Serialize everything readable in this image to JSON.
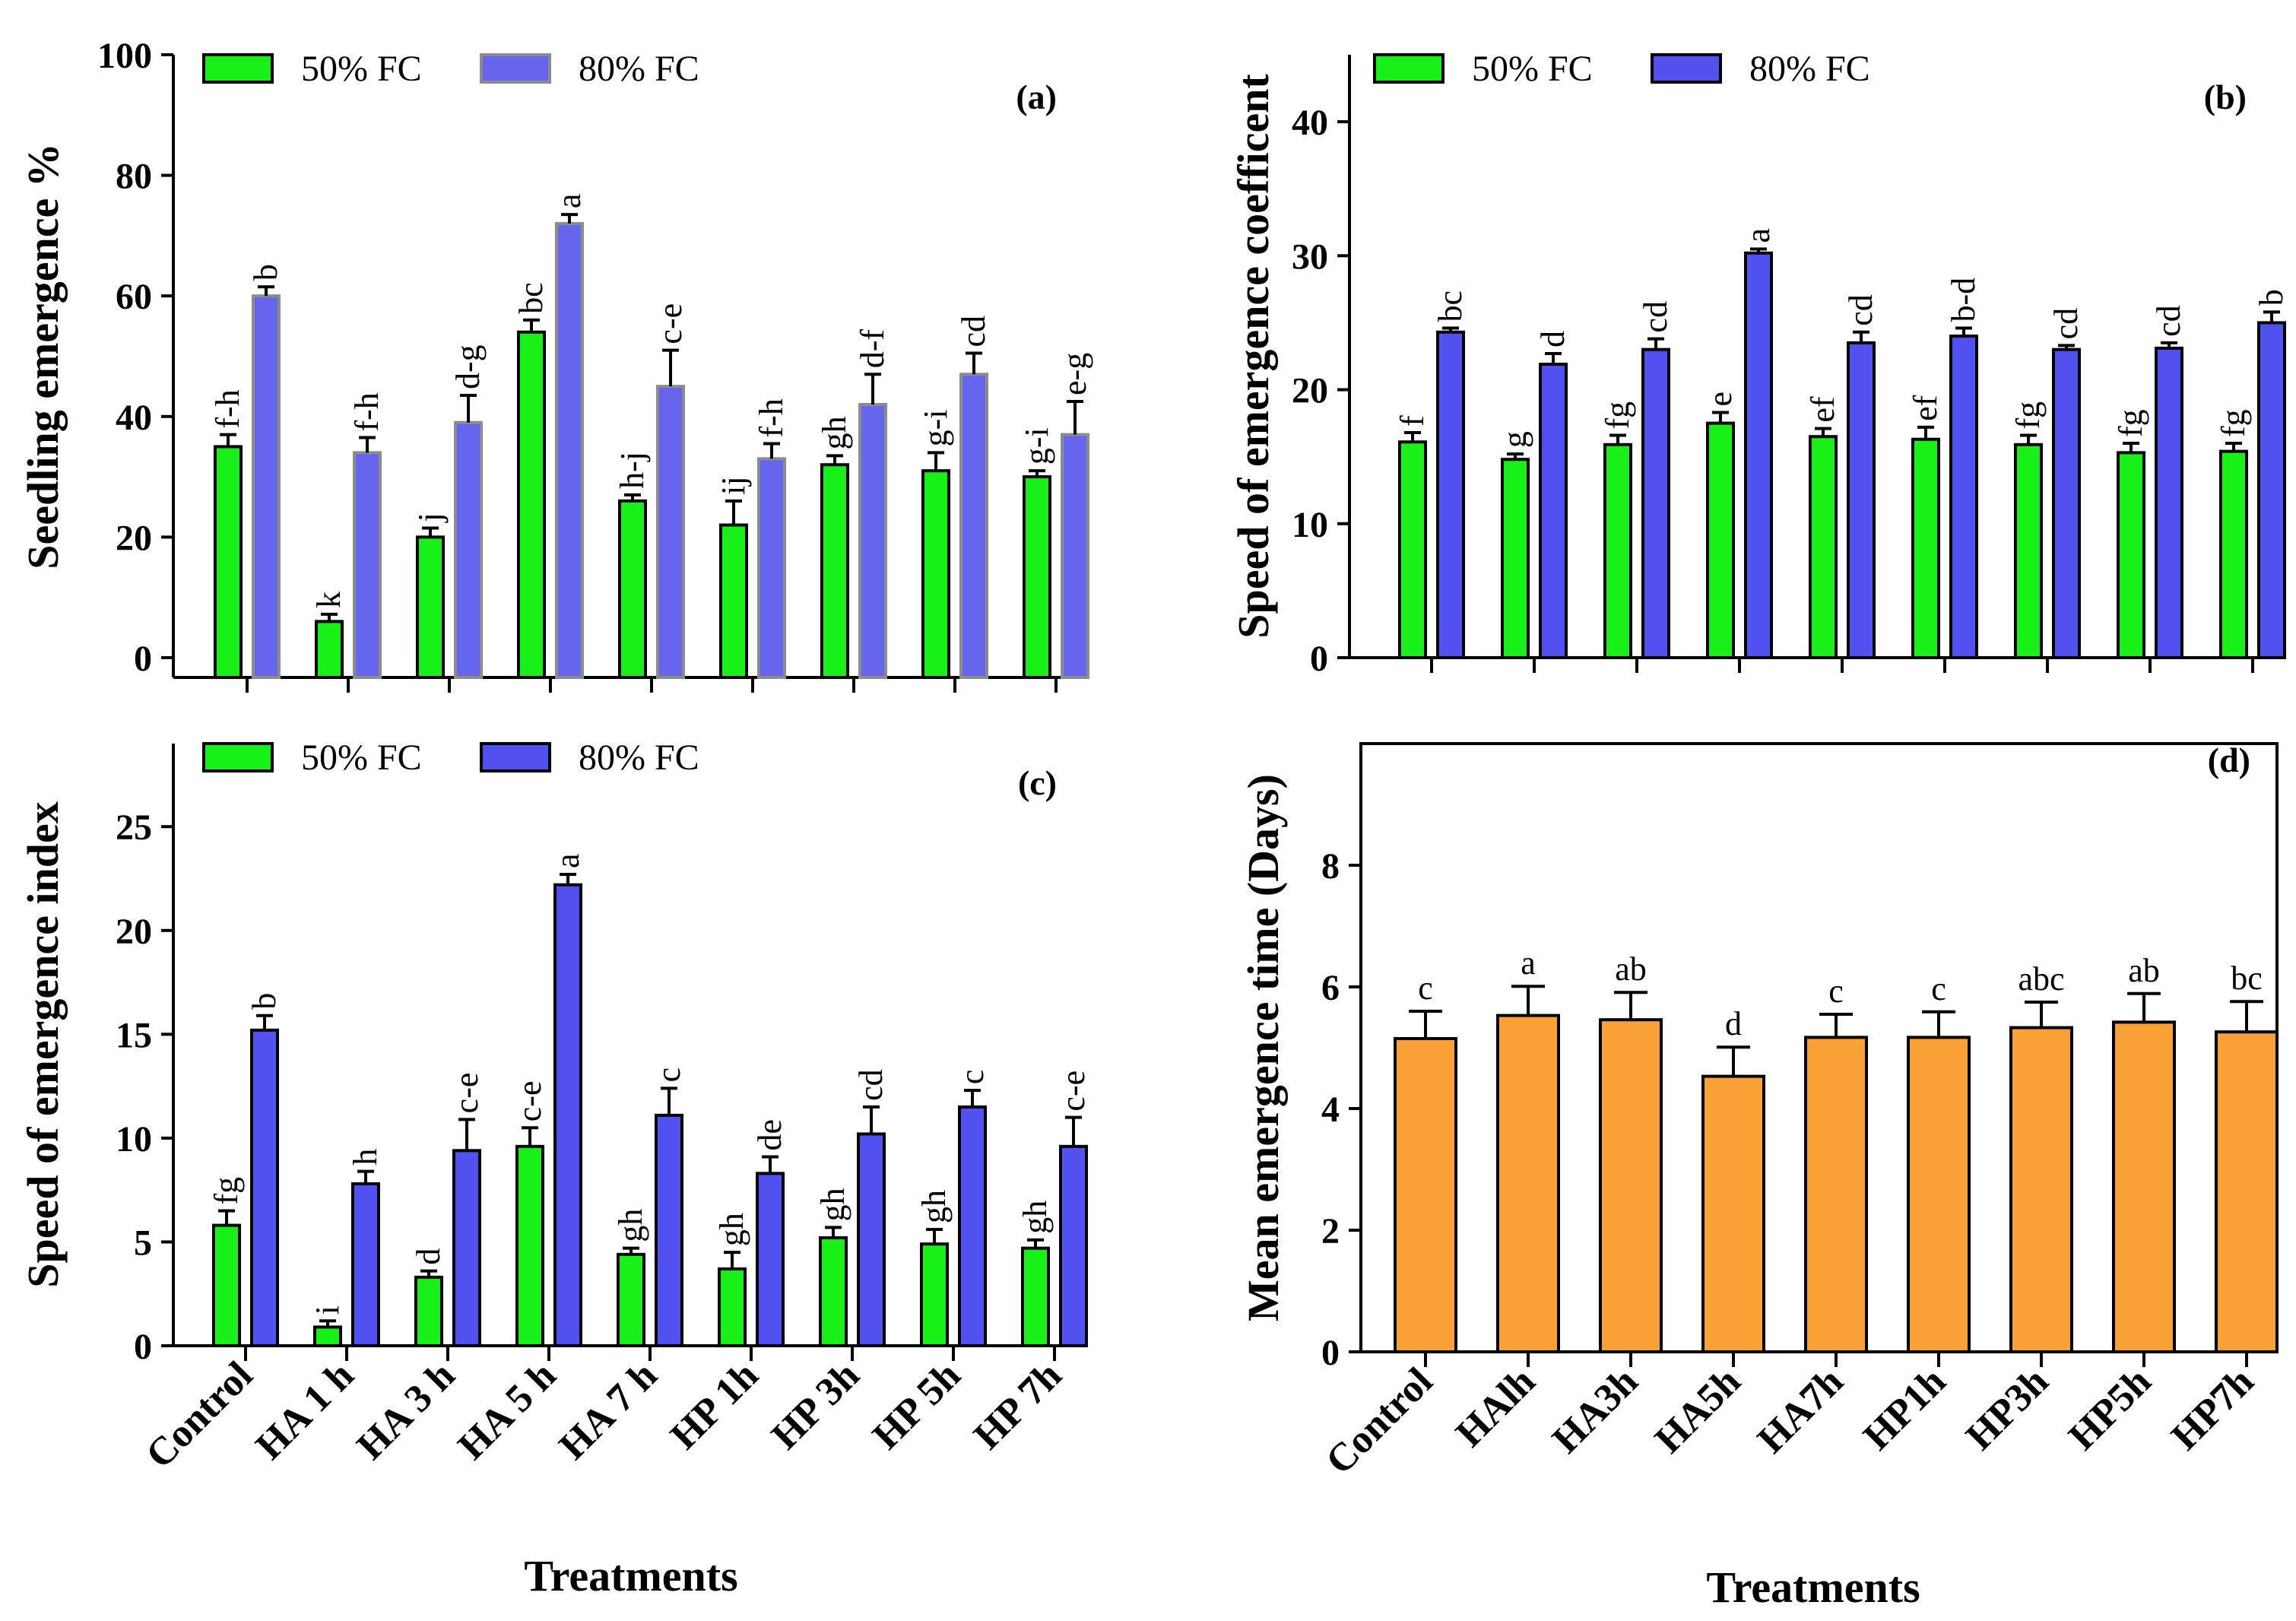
{
  "colors": {
    "green": "#19ef19",
    "blue": "#5151f0",
    "blue_light": "#6565ee",
    "orange": "#f9a036",
    "grey_edge": "#8c8c8c"
  },
  "categories": [
    "Control",
    "HA 1 h",
    "HA 3 h",
    "HA 5 h",
    "HA 7 h",
    "HP 1h",
    "HP 3h",
    "HP 5h",
    "HP 7h"
  ],
  "x_title": "Treatments",
  "chart_data": [
    {
      "id": "a",
      "type": "bar",
      "tag": "(a)",
      "title": "",
      "ylabel": "Seedling emergence %",
      "ylim": [
        0,
        100
      ],
      "yticks": [
        "0",
        "20",
        "40",
        "60",
        "80",
        "100"
      ],
      "legend": [
        "50% FC",
        "80% FC"
      ],
      "categories": [
        "Control",
        "HA 1 h",
        "HA 3 h",
        "HA 5 h",
        "HA 7 h",
        "HP 1h",
        "HP 3h",
        "HP 5h",
        "HP 7h"
      ],
      "series": [
        {
          "name": "50% FC",
          "values": [
            35,
            6,
            20,
            54,
            26,
            22,
            32,
            31,
            30
          ],
          "errors": [
            2,
            1.2,
            1.5,
            2,
            1,
            4,
            1.5,
            3,
            1
          ],
          "letters": [
            "f-h",
            "k",
            "j",
            "bc",
            "h-j",
            "ij",
            "gh",
            "g-i",
            "g-i"
          ]
        },
        {
          "name": "80% FC",
          "values": [
            60,
            34,
            39,
            72,
            45,
            33,
            42,
            47,
            37
          ],
          "errors": [
            1.5,
            2.5,
            4.5,
            1.5,
            6,
            2.5,
            5,
            3.5,
            5.5
          ],
          "letters": [
            "b",
            "f-h",
            "d-g",
            "a",
            "c-e",
            "f-h",
            "d-f",
            "cd",
            "e-g"
          ]
        }
      ]
    },
    {
      "id": "b",
      "type": "bar",
      "tag": "(b)",
      "title": "",
      "ylabel": "Speed of emergence coefficent",
      "ylim": [
        0,
        45
      ],
      "yticks": [
        "0",
        "10",
        "20",
        "30",
        "40"
      ],
      "legend": [
        "50% FC",
        "80% FC"
      ],
      "categories": [
        "Control",
        "HA 1 h",
        "HA 3 h",
        "HA 5 h",
        "HA 7 h",
        "HP 1h",
        "HP 3h",
        "HP 5h",
        "HP 7h"
      ],
      "series": [
        {
          "name": "50% FC",
          "values": [
            16.1,
            14.8,
            15.9,
            17.5,
            16.5,
            16.3,
            15.9,
            15.3,
            15.4
          ],
          "errors": [
            0.7,
            0.4,
            0.7,
            0.8,
            0.6,
            0.9,
            0.7,
            0.7,
            0.6
          ],
          "letters": [
            "f",
            "g",
            "fg",
            "e",
            "ef",
            "ef",
            "fg",
            "fg",
            "fg"
          ]
        },
        {
          "name": "80% FC",
          "values": [
            24.3,
            21.9,
            23.0,
            30.2,
            23.5,
            24.0,
            23.0,
            23.1,
            25.0
          ],
          "errors": [
            0.3,
            0.8,
            0.8,
            0.3,
            0.8,
            0.6,
            0.3,
            0.4,
            0.8
          ],
          "letters": [
            "bc",
            "d",
            "cd",
            "a",
            "cd",
            "b-d",
            "cd",
            "cd",
            "b"
          ]
        }
      ]
    },
    {
      "id": "c",
      "type": "bar",
      "tag": "(c)",
      "title": "",
      "ylabel": "Speed of emergence index",
      "ylim": [
        0,
        29
      ],
      "yticks": [
        "0",
        "5",
        "10",
        "15",
        "20",
        "25"
      ],
      "legend": [
        "50% FC",
        "80% FC"
      ],
      "categories": [
        "Control",
        "HA 1 h",
        "HA 3 h",
        "HA 5 h",
        "HA 7 h",
        "HP 1h",
        "HP 3h",
        "HP 5h",
        "HP 7h"
      ],
      "xlabel": "Treatments",
      "series": [
        {
          "name": "50% FC",
          "values": [
            5.8,
            0.9,
            3.3,
            9.6,
            4.4,
            3.7,
            5.2,
            4.9,
            4.7
          ],
          "errors": [
            0.7,
            0.3,
            0.3,
            0.9,
            0.3,
            0.8,
            0.5,
            0.7,
            0.4
          ],
          "letters": [
            "fg",
            "i",
            "d",
            "c-e",
            "gh",
            "gh",
            "gh",
            "gh",
            "gh"
          ]
        },
        {
          "name": "80% FC",
          "values": [
            15.2,
            7.8,
            9.4,
            22.2,
            11.1,
            8.3,
            10.2,
            11.5,
            9.6
          ],
          "errors": [
            0.7,
            0.6,
            1.5,
            0.5,
            1.3,
            0.8,
            1.3,
            0.8,
            1.4
          ],
          "letters": [
            "b",
            "h",
            "c-e",
            "a",
            "c",
            "de",
            "cd",
            "c",
            "c-e"
          ]
        }
      ]
    },
    {
      "id": "d",
      "type": "bar",
      "tag": "(d)",
      "title": "",
      "ylabel": "Mean emergence time (Days)",
      "ylim": [
        0,
        10
      ],
      "yticks": [
        "0",
        "2",
        "4",
        "6",
        "8"
      ],
      "categories": [
        "Control",
        "HAlh",
        "HA3h",
        "HA5h",
        "HA7h",
        "HP1h",
        "HP3h",
        "HP5h",
        "HP7h"
      ],
      "xlabel": "Treatments",
      "series": [
        {
          "name": "Mean emergence time",
          "values": [
            5.15,
            5.53,
            5.46,
            4.53,
            5.17,
            5.17,
            5.33,
            5.42,
            5.26
          ],
          "errors": [
            0.45,
            0.48,
            0.45,
            0.48,
            0.38,
            0.42,
            0.42,
            0.47,
            0.5
          ],
          "letters": [
            "c",
            "a",
            "ab",
            "d",
            "c",
            "c",
            "abc",
            "ab",
            "bc"
          ]
        }
      ]
    }
  ]
}
